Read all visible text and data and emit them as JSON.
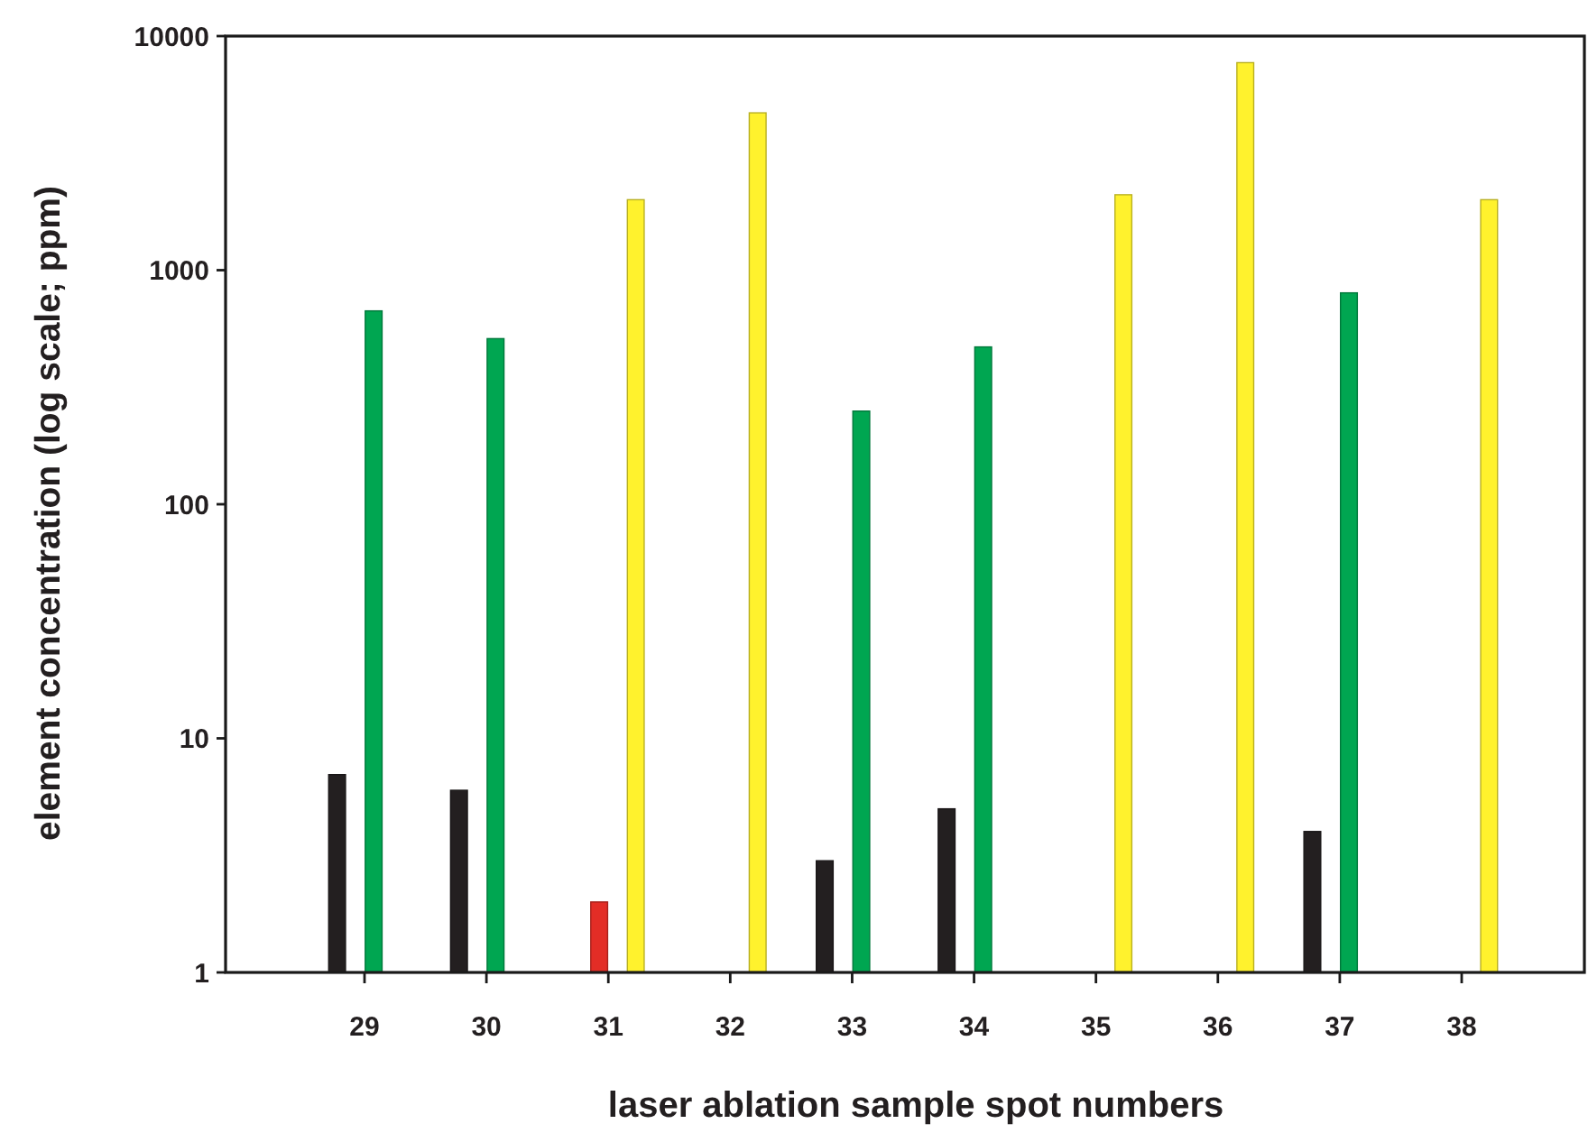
{
  "chart_data": {
    "type": "bar",
    "xlabel": "laser ablation sample spot numbers",
    "ylabel": "element concentration (log scale; ppm)",
    "categories": [
      "29",
      "30",
      "31",
      "32",
      "33",
      "34",
      "35",
      "36",
      "37",
      "38"
    ],
    "series": [
      {
        "color": "#231f20",
        "values": [
          7,
          6,
          null,
          null,
          3,
          5,
          null,
          null,
          4,
          null
        ]
      },
      {
        "color": "#e32d26",
        "values": [
          null,
          null,
          2,
          null,
          null,
          null,
          null,
          null,
          null,
          null
        ]
      },
      {
        "color": "#00a651",
        "values": [
          670,
          510,
          null,
          null,
          250,
          470,
          null,
          null,
          800,
          null
        ]
      },
      {
        "color": "#fff22d",
        "values": [
          null,
          null,
          2000,
          4700,
          null,
          null,
          2100,
          7700,
          null,
          2000
        ]
      }
    ],
    "log": true,
    "ylim": [
      1,
      10000
    ],
    "yticks": [
      1,
      10,
      100,
      1000,
      10000
    ]
  }
}
